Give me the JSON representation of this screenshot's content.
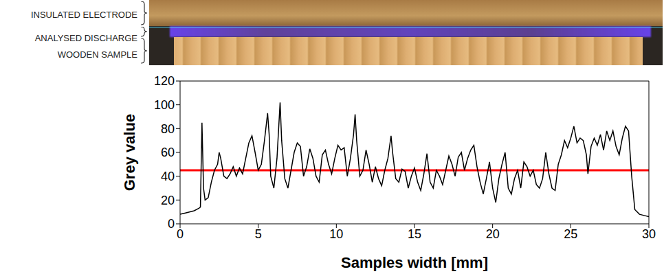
{
  "image_labels": [
    "INSULATED ELECTRODE",
    "ANALYSED DISCHARGE",
    "WOODEN SAMPLE"
  ],
  "chart_data": {
    "type": "line",
    "x_label": "Samples width [mm]",
    "y_label": "Grey value",
    "color": "#000000",
    "xlim": [
      0,
      30
    ],
    "xticks": [
      0,
      5,
      10,
      15,
      20,
      25,
      30
    ],
    "ylim": [
      0,
      120
    ],
    "yticks": [
      0,
      20,
      40,
      60,
      80,
      100,
      120
    ],
    "grid": false,
    "reference_line": {
      "value": 45,
      "color": "#ff0000"
    },
    "x": [
      0,
      0.3,
      0.6,
      0.9,
      1.2,
      1.3,
      1.4,
      1.5,
      1.6,
      1.8,
      2.0,
      2.2,
      2.4,
      2.5,
      2.6,
      2.8,
      3.0,
      3.2,
      3.4,
      3.6,
      3.8,
      4.0,
      4.2,
      4.4,
      4.6,
      4.8,
      5.0,
      5.2,
      5.4,
      5.6,
      5.7,
      5.8,
      6.0,
      6.2,
      6.4,
      6.5,
      6.7,
      6.9,
      7.1,
      7.3,
      7.5,
      7.7,
      7.9,
      8.1,
      8.3,
      8.5,
      8.7,
      8.9,
      9.1,
      9.3,
      9.5,
      9.7,
      9.9,
      10.1,
      10.3,
      10.5,
      10.7,
      10.9,
      11.1,
      11.2,
      11.3,
      11.5,
      11.7,
      11.9,
      12.1,
      12.3,
      12.5,
      12.7,
      12.9,
      13.1,
      13.3,
      13.5,
      13.6,
      13.8,
      14.0,
      14.2,
      14.4,
      14.6,
      14.8,
      15.0,
      15.2,
      15.4,
      15.6,
      15.8,
      16.0,
      16.2,
      16.4,
      16.6,
      16.8,
      17.0,
      17.2,
      17.4,
      17.6,
      17.8,
      18.0,
      18.2,
      18.4,
      18.6,
      18.8,
      19.0,
      19.2,
      19.4,
      19.6,
      19.8,
      20.0,
      20.2,
      20.4,
      20.6,
      20.8,
      21.0,
      21.2,
      21.4,
      21.6,
      21.8,
      22.0,
      22.2,
      22.4,
      22.6,
      22.8,
      23.0,
      23.2,
      23.4,
      23.6,
      23.8,
      24.0,
      24.2,
      24.4,
      24.6,
      24.8,
      25.0,
      25.2,
      25.4,
      25.6,
      25.8,
      26.0,
      26.1,
      26.3,
      26.5,
      26.7,
      26.9,
      27.1,
      27.3,
      27.5,
      27.7,
      27.9,
      28.1,
      28.3,
      28.5,
      28.7,
      28.9,
      29.1,
      29.4,
      29.7,
      30.0
    ],
    "values": [
      8,
      9,
      10,
      11,
      13,
      14,
      85,
      30,
      20,
      22,
      35,
      45,
      50,
      60,
      55,
      40,
      38,
      42,
      48,
      40,
      47,
      42,
      55,
      68,
      74,
      60,
      45,
      50,
      70,
      93,
      75,
      40,
      30,
      55,
      102,
      70,
      38,
      30,
      45,
      60,
      68,
      65,
      40,
      48,
      63,
      55,
      40,
      35,
      58,
      62,
      50,
      42,
      55,
      66,
      62,
      64,
      40,
      55,
      75,
      92,
      70,
      40,
      45,
      62,
      50,
      35,
      48,
      38,
      32,
      45,
      55,
      74,
      60,
      38,
      35,
      46,
      44,
      30,
      40,
      47,
      35,
      28,
      42,
      59,
      35,
      30,
      45,
      40,
      33,
      45,
      57,
      50,
      40,
      56,
      60,
      45,
      55,
      62,
      66,
      48,
      35,
      25,
      38,
      52,
      30,
      18,
      38,
      50,
      60,
      30,
      25,
      38,
      45,
      30,
      52,
      48,
      40,
      45,
      33,
      30,
      38,
      60,
      42,
      30,
      28,
      50,
      58,
      70,
      64,
      72,
      82,
      68,
      72,
      70,
      58,
      42,
      65,
      72,
      66,
      75,
      62,
      78,
      70,
      78,
      65,
      58,
      72,
      82,
      78,
      40,
      12,
      8,
      7,
      6
    ]
  }
}
